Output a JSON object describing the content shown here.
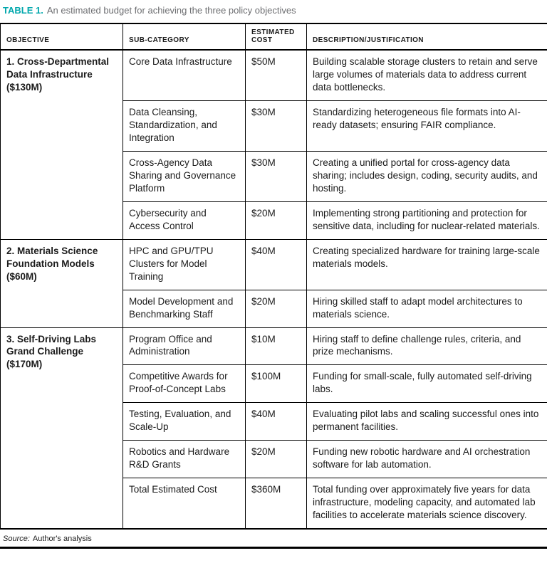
{
  "caption": {
    "label": "TABLE 1.",
    "text": "An estimated budget for achieving the three policy objectives"
  },
  "source": {
    "label": "Source:",
    "text": "Author's analysis"
  },
  "colors": {
    "accent_teal": "#00a7ac",
    "caption_gray": "#6d6e71",
    "border_black": "#000000"
  },
  "table": {
    "headers": [
      "OBJECTIVE",
      "SUB-CATEGORY",
      "ESTIMATED COST",
      "DESCRIPTION/JUSTIFICATION"
    ],
    "groups": [
      {
        "objective": "1. Cross-Departmental Data Infrastructure ($130M)",
        "rows": [
          {
            "sub": "Core Data Infrastructure",
            "cost": "$50M",
            "desc": "Building scalable storage clusters to retain and serve large volumes of materials data to address current data bottlenecks."
          },
          {
            "sub": "Data Cleansing, Standardization, and Integration",
            "cost": "$30M",
            "desc": "Standardizing heterogeneous file formats into AI-ready datasets; ensuring FAIR compliance."
          },
          {
            "sub": "Cross-Agency Data Sharing and Governance Platform",
            "cost": "$30M",
            "desc": "Creating a unified portal for cross-agency data sharing; includes design, coding, security audits, and hosting."
          },
          {
            "sub": "Cybersecurity and Access Control",
            "cost": "$20M",
            "desc": "Implementing strong partitioning and protection for sensitive data, including for nuclear-related materials."
          }
        ]
      },
      {
        "objective": "2. Materials Science Foundation Models ($60M)",
        "rows": [
          {
            "sub": "HPC and GPU/TPU Clusters for Model Training",
            "cost": "$40M",
            "desc": "Creating specialized hardware for training large-scale materials models."
          },
          {
            "sub": "Model Development and Benchmarking Staff",
            "cost": "$20M",
            "desc": "Hiring skilled staff to adapt model architectures to materials science."
          }
        ]
      },
      {
        "objective": "3. Self-Driving Labs Grand Challenge ($170M)",
        "rows": [
          {
            "sub": "Program Office and Administration",
            "cost": "$10M",
            "desc": "Hiring staff to define challenge rules, criteria, and prize mechanisms."
          },
          {
            "sub": "Competitive Awards for Proof-of-Concept Labs",
            "cost": "$100M",
            "desc": "Funding for small-scale, fully automated self-driving labs."
          },
          {
            "sub": "Testing, Evaluation, and Scale-Up",
            "cost": "$40M",
            "desc": "Evaluating pilot labs and scaling successful ones into permanent facilities."
          },
          {
            "sub": "Robotics and Hardware R&D Grants",
            "cost": "$20M",
            "desc": "Funding new robotic hardware and AI orchestration software for lab automation."
          },
          {
            "sub": "Total Estimated Cost",
            "cost": "$360M",
            "desc": "Total funding over approximately five years for data infrastructure, modeling capacity, and automated lab facilities to accelerate materials science discovery."
          }
        ]
      }
    ]
  }
}
